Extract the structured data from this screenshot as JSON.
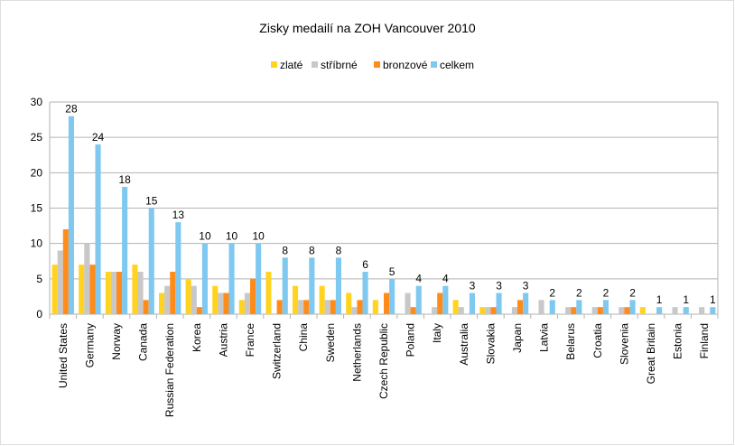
{
  "chart_data": {
    "type": "bar",
    "title": "Zisky medailí na ZOH Vancouver 2010",
    "xlabel": "",
    "ylabel": "",
    "ylim": [
      0,
      30
    ],
    "yticks": [
      0,
      5,
      10,
      15,
      20,
      25,
      30
    ],
    "grid": true,
    "legend_position": "top",
    "categories": [
      "United States",
      "Germany",
      "Norway",
      "Canada",
      "Russian Federation",
      "Korea",
      "Austria",
      "France",
      "Switzerland",
      "China",
      "Sweden",
      "Netherlands",
      "Czech Republic",
      "Poland",
      "Italy",
      "Australia",
      "Slovakia",
      "Japan",
      "Latvia",
      "Belarus",
      "Croatia",
      "Slovenia",
      "Great Britain",
      "Estonia",
      "Finland"
    ],
    "series": [
      {
        "name": "zlaté",
        "color": "#ffd320",
        "values": [
          7,
          7,
          6,
          7,
          3,
          5,
          4,
          2,
          6,
          4,
          4,
          3,
          2,
          0,
          0,
          2,
          1,
          0,
          0,
          0,
          0,
          0,
          1,
          0,
          0
        ]
      },
      {
        "name": "stříbrné",
        "color": "#c8c8c8",
        "values": [
          9,
          10,
          6,
          6,
          4,
          4,
          3,
          3,
          0,
          2,
          2,
          1,
          0,
          3,
          1,
          1,
          1,
          1,
          2,
          1,
          1,
          1,
          0,
          1,
          1
        ]
      },
      {
        "name": "bronzové",
        "color": "#ff8c1a",
        "values": [
          12,
          7,
          6,
          2,
          6,
          1,
          3,
          5,
          2,
          2,
          2,
          2,
          3,
          1,
          3,
          0,
          1,
          2,
          0,
          1,
          1,
          1,
          0,
          0,
          0
        ]
      },
      {
        "name": "celkem",
        "color": "#7fc8f0",
        "values": [
          28,
          24,
          18,
          15,
          13,
          10,
          10,
          10,
          8,
          8,
          8,
          6,
          5,
          4,
          4,
          3,
          3,
          3,
          2,
          2,
          2,
          2,
          1,
          1,
          1
        ]
      }
    ],
    "data_labels": [
      28,
      24,
      18,
      15,
      13,
      10,
      10,
      10,
      8,
      8,
      8,
      6,
      5,
      4,
      4,
      3,
      3,
      3,
      2,
      2,
      2,
      2,
      1,
      1,
      1
    ]
  }
}
